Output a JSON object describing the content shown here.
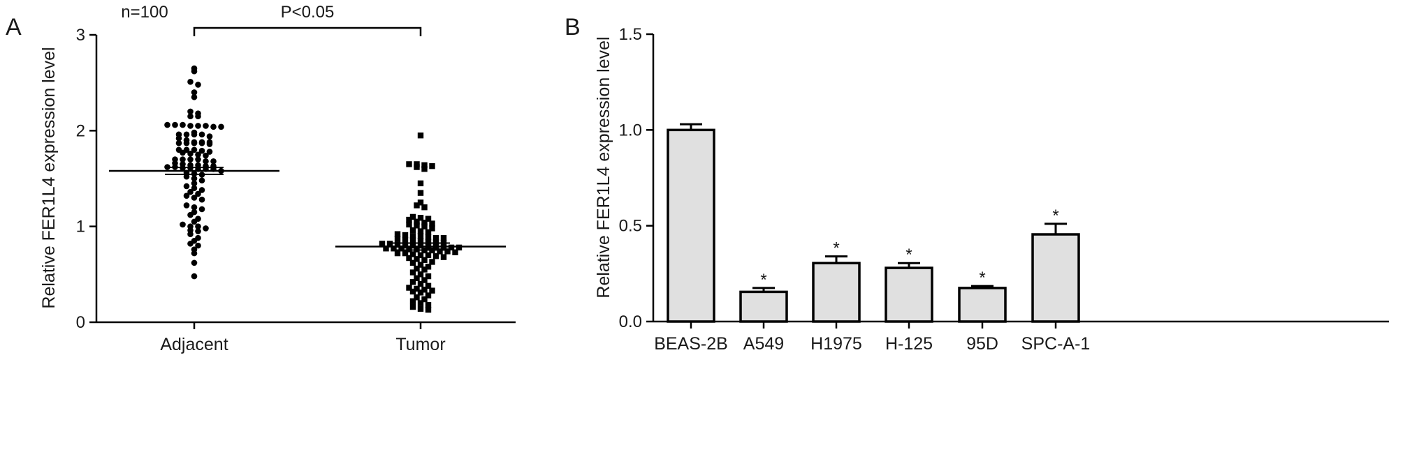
{
  "chart_data": [
    {
      "panel": "A",
      "type": "scatter",
      "ylabel": "Relative FER1L4 expression level",
      "ylim": [
        0,
        3
      ],
      "yticks": [
        "0",
        "1",
        "2",
        "3"
      ],
      "categories": [
        "Adjacent",
        "Tumor"
      ],
      "n_label": "n=100",
      "significance": "P<0.05",
      "means": [
        1.58,
        0.79
      ],
      "series": [
        {
          "values": [
            2.65,
            2.62,
            2.51,
            2.48,
            2.4,
            2.35,
            2.2,
            2.18,
            2.15,
            2.15,
            2.06,
            2.06,
            2.06,
            2.05,
            2.05,
            2.05,
            2.04,
            2.04,
            1.98,
            1.96,
            1.96,
            1.96,
            1.96,
            1.94,
            1.92,
            1.9,
            1.88,
            1.88,
            1.88,
            1.87,
            1.87,
            1.87,
            1.87,
            1.86,
            1.8,
            1.8,
            1.8,
            1.79,
            1.78,
            1.77,
            1.76,
            1.75,
            1.74,
            1.7,
            1.7,
            1.7,
            1.7,
            1.68,
            1.68,
            1.66,
            1.65,
            1.64,
            1.64,
            1.63,
            1.63,
            1.62,
            1.62,
            1.61,
            1.61,
            1.6,
            1.6,
            1.6,
            1.58,
            1.56,
            1.55,
            1.54,
            1.52,
            1.5,
            1.48,
            1.45,
            1.42,
            1.4,
            1.38,
            1.36,
            1.34,
            1.32,
            1.3,
            1.28,
            1.22,
            1.2,
            1.18,
            1.15,
            1.12,
            1.08,
            1.05,
            1.02,
            1.0,
            1.0,
            0.98,
            0.96,
            0.95,
            0.92,
            0.88,
            0.85,
            0.82,
            0.8,
            0.76,
            0.72,
            0.62,
            0.48
          ]
        },
        {
          "values": [
            1.95,
            1.65,
            1.65,
            1.64,
            1.63,
            1.62,
            1.6,
            1.45,
            1.35,
            1.25,
            1.22,
            1.2,
            1.1,
            1.09,
            1.08,
            1.07,
            1.05,
            1.04,
            1.03,
            1.02,
            1.01,
            1.0,
            0.98,
            0.96,
            0.95,
            0.94,
            0.92,
            0.91,
            0.9,
            0.9,
            0.89,
            0.88,
            0.88,
            0.87,
            0.86,
            0.86,
            0.85,
            0.84,
            0.84,
            0.83,
            0.82,
            0.82,
            0.81,
            0.8,
            0.8,
            0.8,
            0.79,
            0.79,
            0.78,
            0.78,
            0.78,
            0.77,
            0.77,
            0.77,
            0.76,
            0.76,
            0.75,
            0.75,
            0.74,
            0.74,
            0.73,
            0.72,
            0.72,
            0.71,
            0.7,
            0.7,
            0.69,
            0.68,
            0.67,
            0.66,
            0.65,
            0.63,
            0.62,
            0.6,
            0.58,
            0.56,
            0.55,
            0.52,
            0.5,
            0.48,
            0.46,
            0.44,
            0.42,
            0.4,
            0.38,
            0.36,
            0.35,
            0.34,
            0.33,
            0.32,
            0.31,
            0.28,
            0.26,
            0.24,
            0.22,
            0.2,
            0.18,
            0.16,
            0.14,
            0.13
          ]
        }
      ]
    },
    {
      "panel": "B",
      "type": "bar",
      "ylabel": "Relative FER1L4 expression level",
      "ylim": [
        0,
        1.5
      ],
      "yticks": [
        "0.0",
        "0.5",
        "1.0",
        "1.5"
      ],
      "categories": [
        "BEAS-2B",
        "A549",
        "H1975",
        "H-125",
        "95D",
        "SPC-A-1"
      ],
      "values": [
        1.0,
        0.155,
        0.305,
        0.28,
        0.175,
        0.455
      ],
      "errors": [
        0.03,
        0.02,
        0.035,
        0.025,
        0.01,
        0.055
      ],
      "annotations": [
        "",
        "*",
        "*",
        "*",
        "*",
        "*"
      ],
      "bar_color": "#e0e0e0"
    }
  ]
}
